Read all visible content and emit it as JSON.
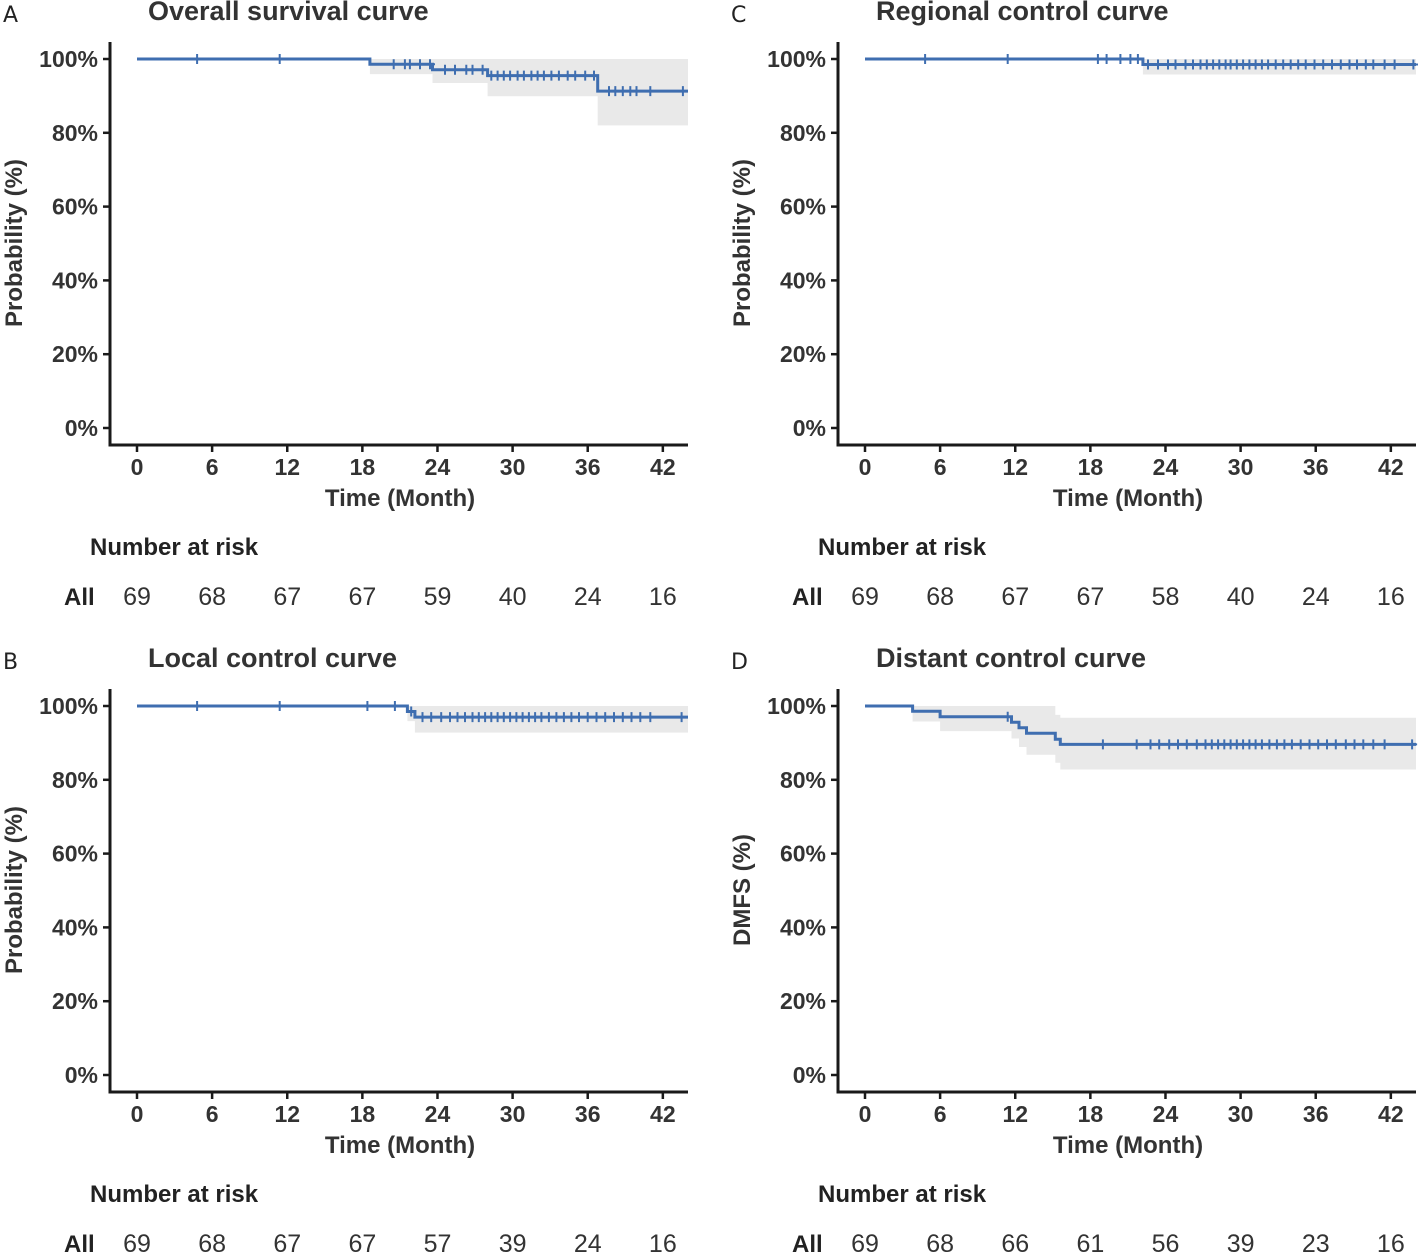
{
  "figure": {
    "colors": {
      "curve": "#3f6eb0",
      "band": "#e9e9e9",
      "axis": "#1a1a1a",
      "text": "#333333"
    }
  },
  "chart_data": [
    {
      "type": "line",
      "panel": "A",
      "title": "Overall survival curve",
      "xlabel": "Time (Month)",
      "ylabel": "Probability (%)",
      "xlim": [
        -1.8,
        44.2
      ],
      "ylim": [
        0,
        100
      ],
      "xticks": [
        0,
        6,
        12,
        18,
        24,
        30,
        36,
        42
      ],
      "xtick_labels": [
        "0",
        "6",
        "12",
        "18",
        "24",
        "30",
        "36",
        "42"
      ],
      "yticks": [
        0,
        20,
        40,
        60,
        80,
        100
      ],
      "ytick_labels": [
        "0%",
        "20%",
        "40%",
        "60%",
        "80%",
        "100%"
      ],
      "grid": false,
      "series": [
        {
          "name": "All",
          "steps": [
            [
              0,
              100
            ],
            [
              18.6,
              98.6
            ],
            [
              23.6,
              97.1
            ],
            [
              28.0,
              95.5
            ],
            [
              36.8,
              91.3
            ]
          ],
          "x_end": 44.2,
          "ci": [
            [
              0,
              100,
              100
            ],
            [
              18.6,
              95.9,
              100
            ],
            [
              23.6,
              93.5,
              100
            ],
            [
              28.0,
              89.9,
              100
            ],
            [
              36.8,
              82.0,
              100
            ]
          ],
          "censor_x": [
            4.8,
            11.4,
            20.5,
            21.4,
            21.8,
            22.6,
            23.4,
            24.6,
            25.4,
            26.3,
            26.8,
            27.6,
            28.3,
            28.8,
            29.3,
            29.8,
            30.4,
            30.9,
            31.5,
            32.0,
            32.5,
            33.1,
            33.7,
            34.4,
            35.0,
            35.8,
            36.5,
            37.7,
            38.2,
            38.8,
            39.4,
            39.9,
            41.0,
            43.6
          ]
        }
      ],
      "risk_table": {
        "title": "Number at risk",
        "strata": "All",
        "times": [
          0,
          6,
          12,
          18,
          24,
          30,
          36,
          42
        ],
        "counts": [
          "69",
          "68",
          "67",
          "67",
          "59",
          "40",
          "24",
          "16"
        ]
      }
    },
    {
      "type": "line",
      "panel": "C",
      "title": "Regional control curve",
      "xlabel": "Time (Month)",
      "ylabel": "Probability (%)",
      "xlim": [
        -1.8,
        44.2
      ],
      "ylim": [
        0,
        100
      ],
      "xticks": [
        0,
        6,
        12,
        18,
        24,
        30,
        36,
        42
      ],
      "xtick_labels": [
        "0",
        "6",
        "12",
        "18",
        "24",
        "30",
        "36",
        "42"
      ],
      "yticks": [
        0,
        20,
        40,
        60,
        80,
        100
      ],
      "ytick_labels": [
        "0%",
        "20%",
        "40%",
        "60%",
        "80%",
        "100%"
      ],
      "grid": false,
      "series": [
        {
          "name": "All",
          "steps": [
            [
              0,
              100
            ],
            [
              22.2,
              98.5
            ]
          ],
          "x_end": 44.2,
          "ci": [
            [
              0,
              100,
              100
            ],
            [
              22.2,
              95.8,
              100
            ]
          ],
          "censor_x": [
            4.8,
            11.4,
            18.6,
            19.3,
            20.4,
            21.2,
            21.8,
            22.6,
            23.4,
            24.2,
            24.8,
            25.6,
            26.2,
            26.8,
            27.3,
            27.8,
            28.3,
            28.8,
            29.2,
            29.7,
            30.2,
            30.7,
            31.2,
            31.7,
            32.2,
            32.8,
            33.4,
            34.0,
            34.6,
            35.2,
            35.9,
            36.6,
            37.3,
            38.0,
            38.7,
            39.3,
            40.0,
            40.6,
            41.5,
            42.3,
            43.8
          ]
        }
      ],
      "risk_table": {
        "title": "Number at risk",
        "strata": "All",
        "times": [
          0,
          6,
          12,
          18,
          24,
          30,
          36,
          42
        ],
        "counts": [
          "69",
          "68",
          "67",
          "67",
          "58",
          "40",
          "24",
          "16"
        ]
      }
    },
    {
      "type": "line",
      "panel": "B",
      "title": "Local control curve",
      "xlabel": "Time (Month)",
      "ylabel": "Probability (%)",
      "xlim": [
        -1.8,
        44.2
      ],
      "ylim": [
        0,
        100
      ],
      "xticks": [
        0,
        6,
        12,
        18,
        24,
        30,
        36,
        42
      ],
      "xtick_labels": [
        "0",
        "6",
        "12",
        "18",
        "24",
        "30",
        "36",
        "42"
      ],
      "yticks": [
        0,
        20,
        40,
        60,
        80,
        100
      ],
      "ytick_labels": [
        "0%",
        "20%",
        "40%",
        "60%",
        "80%",
        "100%"
      ],
      "grid": false,
      "series": [
        {
          "name": "All",
          "steps": [
            [
              0,
              100
            ],
            [
              21.6,
              98.5
            ],
            [
              22.2,
              97.0
            ]
          ],
          "x_end": 44.2,
          "ci": [
            [
              0,
              100,
              100
            ],
            [
              21.6,
              95.9,
              100
            ],
            [
              22.2,
              92.8,
              100
            ]
          ],
          "censor_x": [
            4.8,
            11.4,
            18.4,
            20.6,
            21.9,
            22.8,
            23.5,
            24.3,
            25.0,
            25.6,
            26.2,
            26.8,
            27.3,
            27.8,
            28.3,
            28.8,
            29.3,
            29.8,
            30.3,
            30.8,
            31.3,
            31.8,
            32.3,
            32.9,
            33.5,
            34.1,
            34.7,
            35.3,
            36.0,
            36.7,
            37.4,
            38.1,
            38.8,
            39.5,
            40.2,
            41.0,
            43.5
          ]
        }
      ],
      "risk_table": {
        "title": "Number at risk",
        "strata": "All",
        "times": [
          0,
          6,
          12,
          18,
          24,
          30,
          36,
          42
        ],
        "counts": [
          "69",
          "68",
          "67",
          "67",
          "57",
          "39",
          "24",
          "16"
        ]
      }
    },
    {
      "type": "line",
      "panel": "D",
      "title": "Distant control curve",
      "xlabel": "Time (Month)",
      "ylabel": "DMFS (%)",
      "xlim": [
        -1.8,
        44.2
      ],
      "ylim": [
        0,
        100
      ],
      "xticks": [
        0,
        6,
        12,
        18,
        24,
        30,
        36,
        42
      ],
      "xtick_labels": [
        "0",
        "6",
        "12",
        "18",
        "24",
        "30",
        "36",
        "42"
      ],
      "yticks": [
        0,
        20,
        40,
        60,
        80,
        100
      ],
      "ytick_labels": [
        "0%",
        "20%",
        "40%",
        "60%",
        "80%",
        "100%"
      ],
      "grid": false,
      "series": [
        {
          "name": "All",
          "steps": [
            [
              0,
              100
            ],
            [
              3.8,
              98.6
            ],
            [
              6.0,
              97.1
            ],
            [
              11.7,
              95.6
            ],
            [
              12.3,
              94.1
            ],
            [
              12.9,
              92.6
            ],
            [
              15.2,
              91.0
            ],
            [
              15.6,
              89.6
            ]
          ],
          "x_end": 44.2,
          "ci": [
            [
              0,
              100,
              100
            ],
            [
              3.8,
              95.8,
              100
            ],
            [
              6.0,
              93.2,
              100
            ],
            [
              11.7,
              91.2,
              100
            ],
            [
              12.3,
              88.9,
              100
            ],
            [
              12.9,
              86.8,
              100
            ],
            [
              15.2,
              84.6,
              97.6
            ],
            [
              15.6,
              82.8,
              96.8
            ]
          ],
          "censor_x": [
            11.4,
            19.0,
            21.7,
            22.8,
            23.5,
            24.3,
            25.0,
            25.7,
            26.5,
            27.2,
            27.7,
            28.2,
            28.7,
            29.2,
            29.7,
            30.2,
            30.7,
            31.2,
            31.7,
            32.3,
            32.9,
            33.5,
            34.1,
            34.8,
            35.5,
            36.2,
            36.9,
            37.6,
            38.4,
            39.1,
            39.8,
            40.6,
            41.5,
            43.7
          ]
        }
      ],
      "risk_table": {
        "title": "Number at risk",
        "strata": "All",
        "times": [
          0,
          6,
          12,
          18,
          24,
          30,
          36,
          42
        ],
        "counts": [
          "69",
          "68",
          "66",
          "61",
          "56",
          "39",
          "23",
          "16"
        ]
      }
    }
  ]
}
